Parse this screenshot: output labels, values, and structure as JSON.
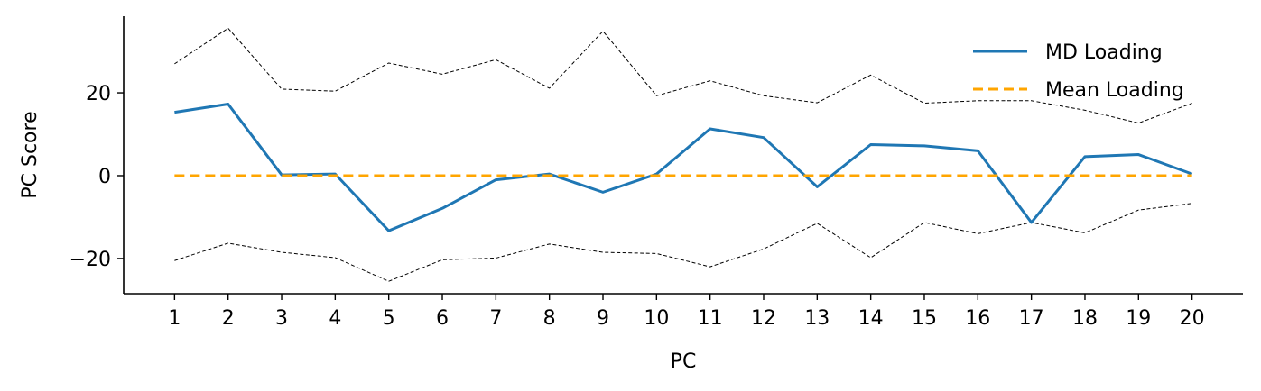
{
  "chart_data": {
    "type": "line",
    "xlabel": "PC",
    "ylabel": "PC Score",
    "x": [
      1,
      2,
      3,
      4,
      5,
      6,
      7,
      8,
      9,
      10,
      11,
      12,
      13,
      14,
      15,
      16,
      17,
      18,
      19,
      20
    ],
    "xlim": [
      0.05,
      20.95
    ],
    "ylim": [
      -28.5,
      38.5
    ],
    "yticks": [
      -20,
      0,
      20
    ],
    "grid": false,
    "legend_position": "top-right",
    "series": [
      {
        "name": "MD Loading",
        "color": "#1f77b4",
        "style": "solid",
        "values": [
          15.3,
          17.3,
          0.2,
          0.4,
          -13.3,
          -7.9,
          -1.0,
          0.4,
          -4.0,
          0.4,
          11.3,
          9.2,
          -2.7,
          7.5,
          7.2,
          6.0,
          -11.3,
          4.6,
          5.1,
          0.4
        ]
      },
      {
        "name": "Mean Loading",
        "color": "#ffa500",
        "style": "dashed",
        "values": [
          0,
          0,
          0,
          0,
          0,
          0,
          0,
          0,
          0,
          0,
          0,
          0,
          0,
          0,
          0,
          0,
          0,
          0,
          0,
          0
        ]
      },
      {
        "name": "",
        "color": "#000000",
        "style": "dashed-thin",
        "values": [
          27.0,
          35.6,
          20.9,
          20.4,
          27.2,
          24.5,
          28.0,
          21.1,
          34.9,
          19.3,
          22.9,
          19.3,
          17.6,
          24.3,
          17.5,
          18.1,
          18.1,
          15.8,
          12.7,
          17.5
        ]
      },
      {
        "name": "",
        "color": "#000000",
        "style": "dashed-thin",
        "values": [
          -20.5,
          -16.3,
          -18.5,
          -19.8,
          -25.5,
          -20.3,
          -19.9,
          -16.5,
          -18.5,
          -18.8,
          -22.0,
          -17.7,
          -11.5,
          -19.8,
          -11.3,
          -14.0,
          -11.3,
          -13.8,
          -8.3,
          -6.7
        ]
      }
    ]
  }
}
